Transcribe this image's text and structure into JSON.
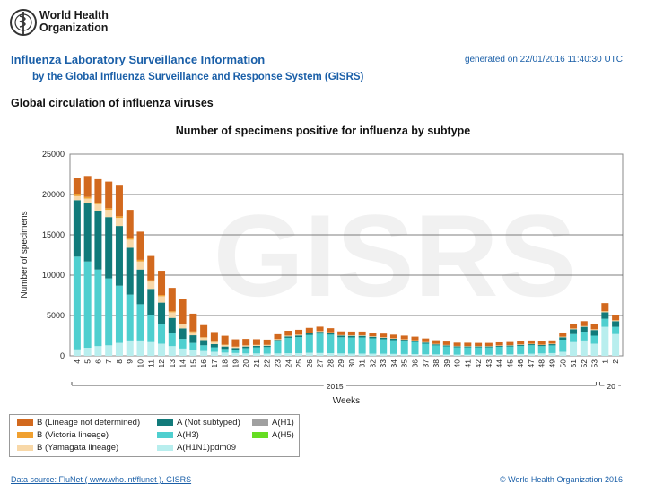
{
  "header": {
    "org_name_line1": "World Health",
    "org_name_line2": "Organization",
    "report_title": "Influenza Laboratory Surveillance Information",
    "report_subtitle": "by the Global Influenza Surveillance and Response System (GISRS)",
    "generated": "generated on 22/01/2016 11:40:30 UTC",
    "section_title": "Global circulation of influenza viruses"
  },
  "watermark": "GISRS",
  "footer": {
    "source": "Data source: FluNet ( www.who.int/flunet ), GISRS",
    "copyright": "© World Health Organization 2016"
  },
  "colors": {
    "B_lineage_not_determined": "#d2691e",
    "B_victoria": "#f0a030",
    "B_yamagata": "#f8d8a8",
    "A_not_subtyped": "#117a7a",
    "A_H3": "#4fcfcf",
    "A_H1N1pdm09": "#b8eeee",
    "A_H1": "#a0a0a0",
    "A_H5": "#66dd22"
  },
  "chart_data": {
    "type": "bar",
    "stacked": true,
    "title": "Number of specimens positive for influenza by subtype",
    "xlabel": "Weeks",
    "ylabel": "Number of specimens",
    "ylim": [
      0,
      25000
    ],
    "yticks": [
      "0",
      "5000",
      "10000",
      "15000",
      "20000",
      "25000"
    ],
    "grid": true,
    "legend_position": "bottom-left",
    "year_labels": [
      "2015",
      "20"
    ],
    "categories": [
      "4",
      "5",
      "6",
      "7",
      "8",
      "9",
      "10",
      "11",
      "12",
      "13",
      "14",
      "15",
      "16",
      "17",
      "18",
      "19",
      "20",
      "21",
      "22",
      "23",
      "24",
      "25",
      "26",
      "27",
      "28",
      "29",
      "30",
      "31",
      "32",
      "33",
      "34",
      "35",
      "36",
      "37",
      "38",
      "39",
      "40",
      "41",
      "42",
      "43",
      "44",
      "45",
      "46",
      "47",
      "48",
      "49",
      "50",
      "51",
      "52",
      "53",
      "1",
      "2"
    ],
    "series": [
      {
        "name": "A(H1N1)pdm09",
        "color_key": "A_H1N1pdm09",
        "values": [
          800,
          1000,
          1200,
          1300,
          1600,
          1900,
          1900,
          1700,
          1500,
          1200,
          900,
          700,
          600,
          500,
          400,
          350,
          300,
          300,
          280,
          300,
          330,
          330,
          380,
          350,
          330,
          300,
          280,
          280,
          270,
          260,
          240,
          230,
          220,
          200,
          190,
          170,
          160,
          150,
          150,
          150,
          170,
          200,
          230,
          260,
          300,
          340,
          500,
          1700,
          1900,
          1500,
          3600,
          2700
        ]
      },
      {
        "name": "A(H3)",
        "color_key": "A_H3",
        "values": [
          11500,
          10700,
          9500,
          8300,
          7100,
          5700,
          4500,
          3400,
          2500,
          1600,
          1200,
          900,
          700,
          550,
          450,
          400,
          650,
          750,
          800,
          1500,
          1900,
          2000,
          2200,
          2400,
          2300,
          2000,
          2000,
          2000,
          1900,
          1800,
          1700,
          1600,
          1500,
          1300,
          1100,
          1000,
          900,
          900,
          900,
          900,
          950,
          950,
          1000,
          1050,
          900,
          950,
          1500,
          1000,
          1100,
          1000,
          1000,
          900
        ]
      },
      {
        "name": "A(Not subtyped)",
        "color_key": "A_not_subtyped",
        "values": [
          7000,
          7200,
          7300,
          7600,
          7400,
          5800,
          4300,
          3200,
          2600,
          1900,
          1300,
          950,
          650,
          400,
          300,
          220,
          200,
          180,
          170,
          170,
          180,
          200,
          200,
          230,
          220,
          200,
          200,
          200,
          190,
          180,
          170,
          160,
          150,
          140,
          130,
          120,
          110,
          110,
          110,
          110,
          110,
          120,
          130,
          130,
          130,
          150,
          300,
          600,
          600,
          700,
          800,
          700
        ]
      },
      {
        "name": "A(H1)",
        "color_key": "A_H1",
        "values": [
          0,
          0,
          0,
          0,
          0,
          0,
          0,
          0,
          0,
          0,
          0,
          0,
          0,
          0,
          0,
          0,
          0,
          0,
          0,
          0,
          0,
          0,
          0,
          0,
          0,
          0,
          0,
          0,
          0,
          0,
          0,
          0,
          0,
          0,
          0,
          0,
          0,
          0,
          0,
          0,
          0,
          0,
          0,
          0,
          0,
          0,
          0,
          0,
          0,
          0,
          0,
          0
        ]
      },
      {
        "name": "A(H5)",
        "color_key": "A_H5",
        "values": [
          0,
          0,
          0,
          0,
          0,
          0,
          0,
          0,
          0,
          0,
          0,
          0,
          0,
          0,
          0,
          0,
          0,
          0,
          0,
          0,
          0,
          0,
          0,
          0,
          0,
          0,
          0,
          0,
          0,
          0,
          0,
          0,
          0,
          0,
          0,
          0,
          0,
          0,
          0,
          0,
          0,
          0,
          0,
          0,
          0,
          0,
          0,
          0,
          0,
          0,
          0,
          0
        ]
      },
      {
        "name": "B (Yamagata lineage)",
        "color_key": "B_yamagata",
        "values": [
          500,
          600,
          800,
          900,
          1000,
          1000,
          1000,
          900,
          800,
          700,
          500,
          400,
          300,
          250,
          200,
          150,
          120,
          100,
          90,
          90,
          80,
          80,
          70,
          70,
          60,
          60,
          60,
          60,
          50,
          50,
          50,
          50,
          40,
          40,
          40,
          40,
          40,
          40,
          40,
          40,
          40,
          40,
          40,
          40,
          40,
          50,
          60,
          70,
          70,
          70,
          100,
          80
        ]
      },
      {
        "name": "B (Victoria lineage)",
        "color_key": "B_victoria",
        "values": [
          200,
          200,
          200,
          200,
          200,
          200,
          200,
          180,
          150,
          130,
          100,
          80,
          60,
          50,
          40,
          30,
          30,
          30,
          20,
          20,
          20,
          20,
          20,
          20,
          20,
          20,
          20,
          20,
          20,
          20,
          20,
          20,
          20,
          20,
          20,
          20,
          20,
          20,
          20,
          20,
          20,
          20,
          20,
          20,
          20,
          20,
          30,
          30,
          30,
          30,
          40,
          30
        ]
      },
      {
        "name": "B (Lineage not determined)",
        "color_key": "B_lineage_not_determined",
        "values": [
          2000,
          2600,
          2900,
          3300,
          3900,
          3500,
          3500,
          3000,
          3000,
          2900,
          3000,
          2200,
          1500,
          1200,
          1100,
          900,
          800,
          700,
          650,
          600,
          600,
          600,
          600,
          550,
          500,
          450,
          450,
          450,
          450,
          450,
          450,
          450,
          450,
          450,
          450,
          420,
          400,
          400,
          380,
          380,
          380,
          380,
          380,
          400,
          400,
          400,
          500,
          500,
          600,
          600,
          1000,
          700
        ]
      }
    ]
  },
  "legend": {
    "items": [
      {
        "label": "B (Lineage not determined)",
        "color_key": "B_lineage_not_determined"
      },
      {
        "label": "B (Victoria lineage)",
        "color_key": "B_victoria"
      },
      {
        "label": "B (Yamagata lineage)",
        "color_key": "B_yamagata"
      },
      {
        "label": "A (Not subtyped)",
        "color_key": "A_not_subtyped"
      },
      {
        "label": "A(H3)",
        "color_key": "A_H3"
      },
      {
        "label": "A(H1N1)pdm09",
        "color_key": "A_H1N1pdm09"
      },
      {
        "label": "A(H1)",
        "color_key": "A_H1"
      },
      {
        "label": "A(H5)",
        "color_key": "A_H5"
      }
    ]
  }
}
